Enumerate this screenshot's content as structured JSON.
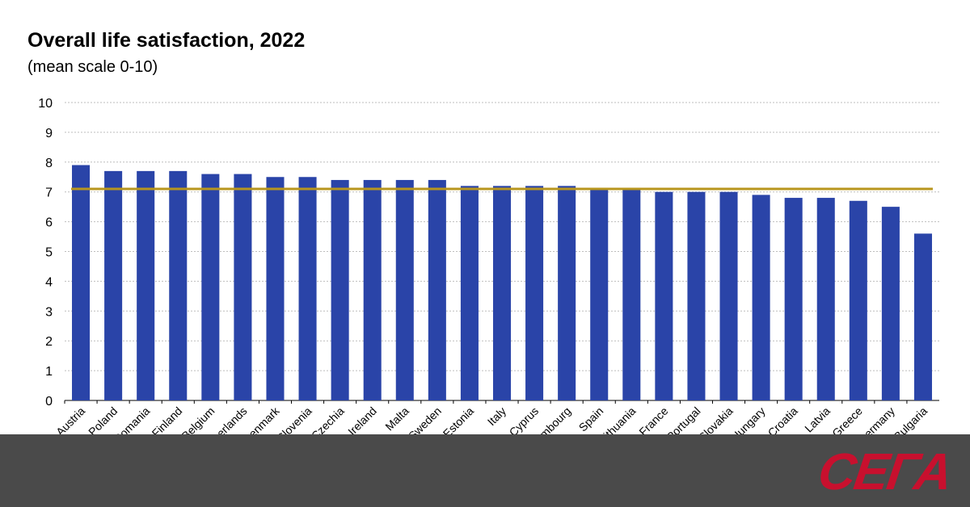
{
  "chart_data": {
    "type": "bar",
    "title": "Overall life satisfaction, 2022",
    "subtitle": "(mean scale 0-10)",
    "categories": [
      "Austria",
      "Poland",
      "Romania",
      "Finland",
      "Belgium",
      "Netherlands",
      "Denmark",
      "Slovenia",
      "Czechia",
      "Ireland",
      "Malta",
      "Sweden",
      "Estonia",
      "Italy",
      "Cyprus",
      "Luxembourg",
      "Spain",
      "Lithuania",
      "France",
      "Portugal",
      "Slovakia",
      "Hungary",
      "Croatia",
      "Latvia",
      "Greece",
      "Germany",
      "Bulgaria"
    ],
    "values": [
      7.9,
      7.7,
      7.7,
      7.7,
      7.6,
      7.6,
      7.5,
      7.5,
      7.4,
      7.4,
      7.4,
      7.4,
      7.2,
      7.2,
      7.2,
      7.2,
      7.1,
      7.1,
      7.0,
      7.0,
      7.0,
      6.9,
      6.8,
      6.8,
      6.7,
      6.5,
      5.6
    ],
    "reference_line": 7.1,
    "ylim": [
      0,
      10
    ],
    "yticks": [
      0,
      1,
      2,
      3,
      4,
      5,
      6,
      7,
      8,
      9,
      10
    ],
    "grid": true,
    "colors": {
      "bar": "#2a44a8",
      "reference_line": "#b8961e",
      "grid": "#bdbdbd"
    }
  },
  "watermark": {
    "text": "СЕГА"
  }
}
